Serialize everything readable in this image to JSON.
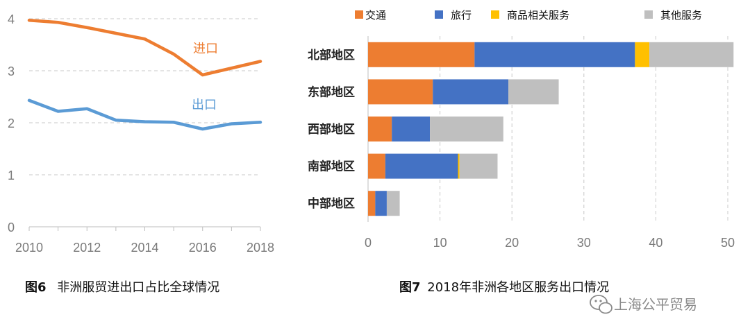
{
  "chart_data": [
    {
      "type": "line",
      "title": "",
      "caption_prefix": "图6",
      "caption_text": "非洲服贸进出口占比全球情况",
      "x": [
        2010,
        2011,
        2012,
        2013,
        2014,
        2015,
        2016,
        2017,
        2018
      ],
      "xticks": [
        "2010",
        "2012",
        "2014",
        "2016",
        "2018"
      ],
      "yticks": [
        "0",
        "1",
        "2",
        "3",
        "4"
      ],
      "ylim": [
        0,
        4
      ],
      "grid": true,
      "series": [
        {
          "name": "进口",
          "color": "#ED7D31",
          "values": [
            3.97,
            3.93,
            3.83,
            3.72,
            3.61,
            3.32,
            2.92,
            3.05,
            3.18
          ]
        },
        {
          "name": "出口",
          "color": "#5B9BD5",
          "values": [
            2.43,
            2.22,
            2.27,
            2.05,
            2.02,
            2.01,
            1.88,
            1.98,
            2.01
          ]
        }
      ]
    },
    {
      "type": "bar",
      "orientation": "horizontal",
      "stacked": true,
      "caption_prefix": "图7",
      "caption_text": "2018年非洲各地区服务出口情况",
      "categories": [
        "北部地区",
        "东部地区",
        "西部地区",
        "南部地区",
        "中部地区"
      ],
      "xticks": [
        "0",
        "10",
        "20",
        "30",
        "40",
        "50"
      ],
      "xlim": [
        0,
        50
      ],
      "legend_position": "top",
      "series": [
        {
          "name": "交通",
          "color": "#ED7D31",
          "values": [
            14.8,
            9.0,
            3.3,
            2.4,
            1.0
          ]
        },
        {
          "name": "旅行",
          "color": "#4472C4",
          "values": [
            22.3,
            10.5,
            5.3,
            10.1,
            1.6
          ]
        },
        {
          "name": "商品相关服务",
          "color": "#FFC000",
          "values": [
            2.0,
            0.0,
            0.0,
            0.2,
            0.0
          ]
        },
        {
          "name": "其他服务",
          "color": "#BFBFBF",
          "values": [
            11.7,
            7.0,
            10.2,
            5.3,
            1.8
          ]
        }
      ]
    }
  ],
  "watermark": "上海公平贸易"
}
